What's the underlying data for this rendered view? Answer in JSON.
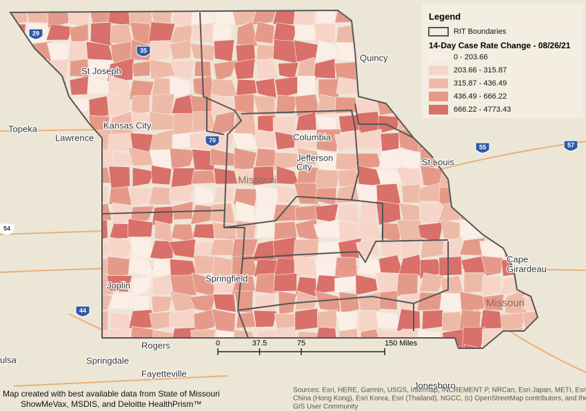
{
  "legend": {
    "title": "Legend",
    "boundary": "RIT Boundaries",
    "subtitle": "14-Day Case Rate Change - 08/26/21",
    "classes": [
      {
        "label": "0 - 203.66",
        "color": "#fbeee6"
      },
      {
        "label": "203.66 - 315.87",
        "color": "#f6d5c8"
      },
      {
        "label": "315.87 - 436.49",
        "color": "#eebaa8"
      },
      {
        "label": "436.49 - 666.22",
        "color": "#e59a89"
      },
      {
        "label": "666.22 - 4773.43",
        "color": "#d9706a"
      }
    ]
  },
  "places": [
    "St Joseph",
    "Kansas City",
    "Topeka",
    "Lawrence",
    "Columbia",
    "Jefferson",
    "City",
    "Missouri",
    "St Louis",
    "Quincy",
    "Springfield",
    "Joplin",
    "Rogers",
    "Springdale",
    "Fayetteville",
    "Cape",
    "Girardeau",
    "Missouri",
    "Jonesboro",
    "ulsa"
  ],
  "highways": [
    "29",
    "35",
    "70",
    "55",
    "57",
    "44",
    "54"
  ],
  "scale": {
    "ticks": [
      0,
      37.5,
      75,
      {
        "value": 150,
        "label": "150 Miles"
      }
    ]
  },
  "credits": [
    "Map created with best available data from State of Missouri",
    "ShowMeVax, MSDIS, and Deloitte HealthPrism™"
  ],
  "sources": [
    "Sources: Esri, HERE, Garmin, USGS, Intermap, INCREMENT P, NRCan, Esri Japan, METI, Esri",
    "China (Hong Kong), Esri Korea, Esri (Thailand), NGCC, (c) OpenStreetMap contributors, and the",
    "GIS User Community"
  ]
}
